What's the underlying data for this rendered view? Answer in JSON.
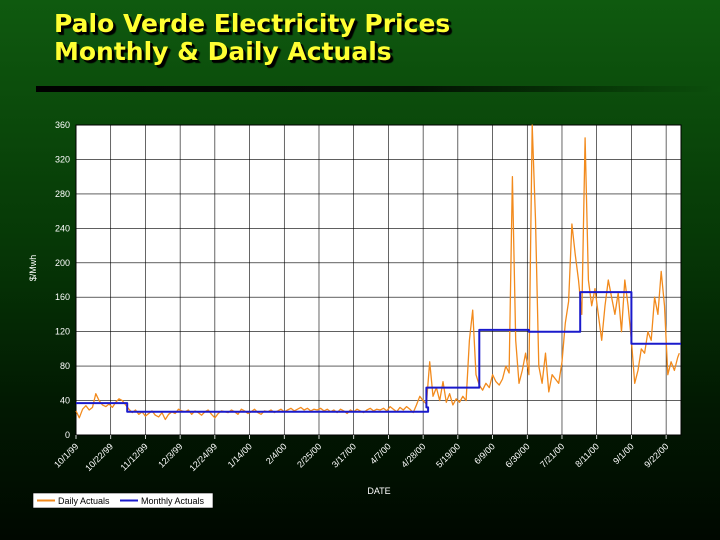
{
  "slide": {
    "title_line1": "Palo Verde Electricity Prices",
    "title_line2": "Monthly & Daily Actuals"
  },
  "chart_data": {
    "type": "line",
    "xlabel": "DATE",
    "ylabel": "$/Mwh",
    "ylim": [
      0,
      360
    ],
    "yticks": [
      0,
      40,
      80,
      120,
      160,
      200,
      240,
      280,
      320,
      360
    ],
    "x_start": "10/1/99",
    "x_end": "10/1/00",
    "x_ticks": [
      "10/1/99",
      "10/22/99",
      "11/12/99",
      "12/3/99",
      "12/24/99",
      "1/14/00",
      "2/4/00",
      "2/25/00",
      "3/17/00",
      "4/7/00",
      "4/28/00",
      "5/19/00",
      "6/9/00",
      "6/30/00",
      "7/21/00",
      "8/11/00",
      "9/1/00",
      "9/22/00"
    ],
    "grid": true,
    "legend_position": "bottom-left",
    "colors": {
      "plot_background": "#ffffff",
      "grid": "#000000",
      "daily": "#f28a1c",
      "monthly": "#1a1acc",
      "legend_background": "#ffffff"
    },
    "series": [
      {
        "name": "Daily Actuals",
        "style": "line",
        "points": [
          [
            "10/1/99",
            28
          ],
          [
            "10/3/99",
            20
          ],
          [
            "10/5/99",
            30
          ],
          [
            "10/7/99",
            34
          ],
          [
            "10/9/99",
            29
          ],
          [
            "10/11/99",
            32
          ],
          [
            "10/13/99",
            48
          ],
          [
            "10/15/99",
            40
          ],
          [
            "10/17/99",
            35
          ],
          [
            "10/19/99",
            33
          ],
          [
            "10/21/99",
            36
          ],
          [
            "10/23/99",
            32
          ],
          [
            "10/25/99",
            38
          ],
          [
            "10/27/99",
            42
          ],
          [
            "10/29/99",
            40
          ],
          [
            "10/31/99",
            35
          ],
          [
            "11/2/99",
            30
          ],
          [
            "11/4/99",
            26
          ],
          [
            "11/6/99",
            29
          ],
          [
            "11/8/99",
            24
          ],
          [
            "11/10/99",
            27
          ],
          [
            "11/12/99",
            22
          ],
          [
            "11/14/99",
            25
          ],
          [
            "11/16/99",
            28
          ],
          [
            "11/18/99",
            23
          ],
          [
            "11/20/99",
            21
          ],
          [
            "11/22/99",
            26
          ],
          [
            "11/24/99",
            18
          ],
          [
            "11/26/99",
            24
          ],
          [
            "11/28/99",
            27
          ],
          [
            "11/30/99",
            25
          ],
          [
            "12/2/99",
            30
          ],
          [
            "12/4/99",
            28
          ],
          [
            "12/6/99",
            27
          ],
          [
            "12/8/99",
            29
          ],
          [
            "12/10/99",
            24
          ],
          [
            "12/12/99",
            28
          ],
          [
            "12/14/99",
            26
          ],
          [
            "12/16/99",
            23
          ],
          [
            "12/18/99",
            27
          ],
          [
            "12/20/99",
            29
          ],
          [
            "12/22/99",
            24
          ],
          [
            "12/24/99",
            20
          ],
          [
            "12/26/99",
            25
          ],
          [
            "12/28/99",
            28
          ],
          [
            "12/30/99",
            27
          ],
          [
            "1/1/00",
            26
          ],
          [
            "1/3/00",
            29
          ],
          [
            "1/5/00",
            27
          ],
          [
            "1/7/00",
            24
          ],
          [
            "1/9/00",
            30
          ],
          [
            "1/11/00",
            28
          ],
          [
            "1/13/00",
            25
          ],
          [
            "1/15/00",
            27
          ],
          [
            "1/17/00",
            30
          ],
          [
            "1/19/00",
            26
          ],
          [
            "1/21/00",
            24
          ],
          [
            "1/23/00",
            28
          ],
          [
            "1/25/00",
            27
          ],
          [
            "1/27/00",
            29
          ],
          [
            "1/29/00",
            26
          ],
          [
            "1/31/00",
            28
          ],
          [
            "2/2/00",
            30
          ],
          [
            "2/4/00",
            27
          ],
          [
            "2/6/00",
            29
          ],
          [
            "2/8/00",
            31
          ],
          [
            "2/10/00",
            28
          ],
          [
            "2/12/00",
            30
          ],
          [
            "2/14/00",
            32
          ],
          [
            "2/16/00",
            29
          ],
          [
            "2/18/00",
            31
          ],
          [
            "2/20/00",
            28
          ],
          [
            "2/22/00",
            30
          ],
          [
            "2/24/00",
            29
          ],
          [
            "2/26/00",
            31
          ],
          [
            "2/28/00",
            28
          ],
          [
            "3/1/00",
            30
          ],
          [
            "3/3/00",
            27
          ],
          [
            "3/5/00",
            29
          ],
          [
            "3/7/00",
            26
          ],
          [
            "3/9/00",
            30
          ],
          [
            "3/11/00",
            28
          ],
          [
            "3/13/00",
            25
          ],
          [
            "3/15/00",
            29
          ],
          [
            "3/17/00",
            27
          ],
          [
            "3/19/00",
            30
          ],
          [
            "3/21/00",
            28
          ],
          [
            "3/23/00",
            26
          ],
          [
            "3/25/00",
            29
          ],
          [
            "3/27/00",
            31
          ],
          [
            "3/29/00",
            28
          ],
          [
            "3/31/00",
            30
          ],
          [
            "4/2/00",
            29
          ],
          [
            "4/4/00",
            31
          ],
          [
            "4/6/00",
            28
          ],
          [
            "4/8/00",
            33
          ],
          [
            "4/10/00",
            30
          ],
          [
            "4/12/00",
            27
          ],
          [
            "4/14/00",
            32
          ],
          [
            "4/16/00",
            29
          ],
          [
            "4/18/00",
            33
          ],
          [
            "4/20/00",
            30
          ],
          [
            "4/22/00",
            26
          ],
          [
            "4/24/00",
            35
          ],
          [
            "4/26/00",
            45
          ],
          [
            "4/28/00",
            40
          ],
          [
            "4/30/00",
            36
          ],
          [
            "5/2/00",
            85
          ],
          [
            "5/4/00",
            45
          ],
          [
            "5/6/00",
            55
          ],
          [
            "5/8/00",
            40
          ],
          [
            "5/10/00",
            62
          ],
          [
            "5/12/00",
            38
          ],
          [
            "5/14/00",
            48
          ],
          [
            "5/16/00",
            35
          ],
          [
            "5/18/00",
            42
          ],
          [
            "5/20/00",
            38
          ],
          [
            "5/22/00",
            45
          ],
          [
            "5/24/00",
            40
          ],
          [
            "5/26/00",
            110
          ],
          [
            "5/28/00",
            145
          ],
          [
            "5/30/00",
            70
          ],
          [
            "6/1/00",
            58
          ],
          [
            "6/3/00",
            52
          ],
          [
            "6/5/00",
            60
          ],
          [
            "6/7/00",
            55
          ],
          [
            "6/9/00",
            70
          ],
          [
            "6/11/00",
            62
          ],
          [
            "6/13/00",
            58
          ],
          [
            "6/15/00",
            65
          ],
          [
            "6/17/00",
            80
          ],
          [
            "6/19/00",
            72
          ],
          [
            "6/21/00",
            300
          ],
          [
            "6/23/00",
            110
          ],
          [
            "6/25/00",
            60
          ],
          [
            "6/27/00",
            75
          ],
          [
            "6/29/00",
            95
          ],
          [
            "7/1/00",
            70
          ],
          [
            "7/3/00",
            360
          ],
          [
            "7/5/00",
            250
          ],
          [
            "7/7/00",
            80
          ],
          [
            "7/9/00",
            60
          ],
          [
            "7/11/00",
            95
          ],
          [
            "7/13/00",
            50
          ],
          [
            "7/15/00",
            70
          ],
          [
            "7/17/00",
            65
          ],
          [
            "7/19/00",
            60
          ],
          [
            "7/21/00",
            85
          ],
          [
            "7/23/00",
            130
          ],
          [
            "7/25/00",
            155
          ],
          [
            "7/27/00",
            245
          ],
          [
            "7/29/00",
            210
          ],
          [
            "7/31/00",
            180
          ],
          [
            "8/2/00",
            140
          ],
          [
            "8/4/00",
            345
          ],
          [
            "8/6/00",
            180
          ],
          [
            "8/8/00",
            150
          ],
          [
            "8/10/00",
            170
          ],
          [
            "8/12/00",
            140
          ],
          [
            "8/14/00",
            110
          ],
          [
            "8/16/00",
            150
          ],
          [
            "8/18/00",
            180
          ],
          [
            "8/20/00",
            160
          ],
          [
            "8/22/00",
            140
          ],
          [
            "8/24/00",
            165
          ],
          [
            "8/26/00",
            120
          ],
          [
            "8/28/00",
            180
          ],
          [
            "8/30/00",
            150
          ],
          [
            "9/1/00",
            110
          ],
          [
            "9/3/00",
            60
          ],
          [
            "9/5/00",
            75
          ],
          [
            "9/7/00",
            100
          ],
          [
            "9/9/00",
            95
          ],
          [
            "9/11/00",
            120
          ],
          [
            "9/13/00",
            110
          ],
          [
            "9/15/00",
            160
          ],
          [
            "9/17/00",
            140
          ],
          [
            "9/19/00",
            190
          ],
          [
            "9/21/00",
            150
          ],
          [
            "9/23/00",
            70
          ],
          [
            "9/25/00",
            85
          ],
          [
            "9/27/00",
            75
          ],
          [
            "9/29/00",
            90
          ],
          [
            "9/30/00",
            95
          ]
        ]
      },
      {
        "name": "Monthly Actuals",
        "style": "step",
        "points": [
          [
            "10/1/99",
            37
          ],
          [
            "11/1/99",
            37
          ],
          [
            "11/1/99",
            27
          ],
          [
            "5/1/00",
            27
          ],
          [
            "5/1/00",
            32
          ],
          [
            "4/30/00",
            32
          ],
          [
            "4/30/00",
            55
          ],
          [
            "6/1/00",
            55
          ],
          [
            "6/1/00",
            122
          ],
          [
            "7/1/00",
            122
          ],
          [
            "7/1/00",
            120
          ],
          [
            "8/1/00",
            120
          ],
          [
            "8/1/00",
            166
          ],
          [
            "9/1/00",
            166
          ],
          [
            "9/1/00",
            106
          ],
          [
            "10/1/00",
            106
          ]
        ]
      }
    ]
  }
}
